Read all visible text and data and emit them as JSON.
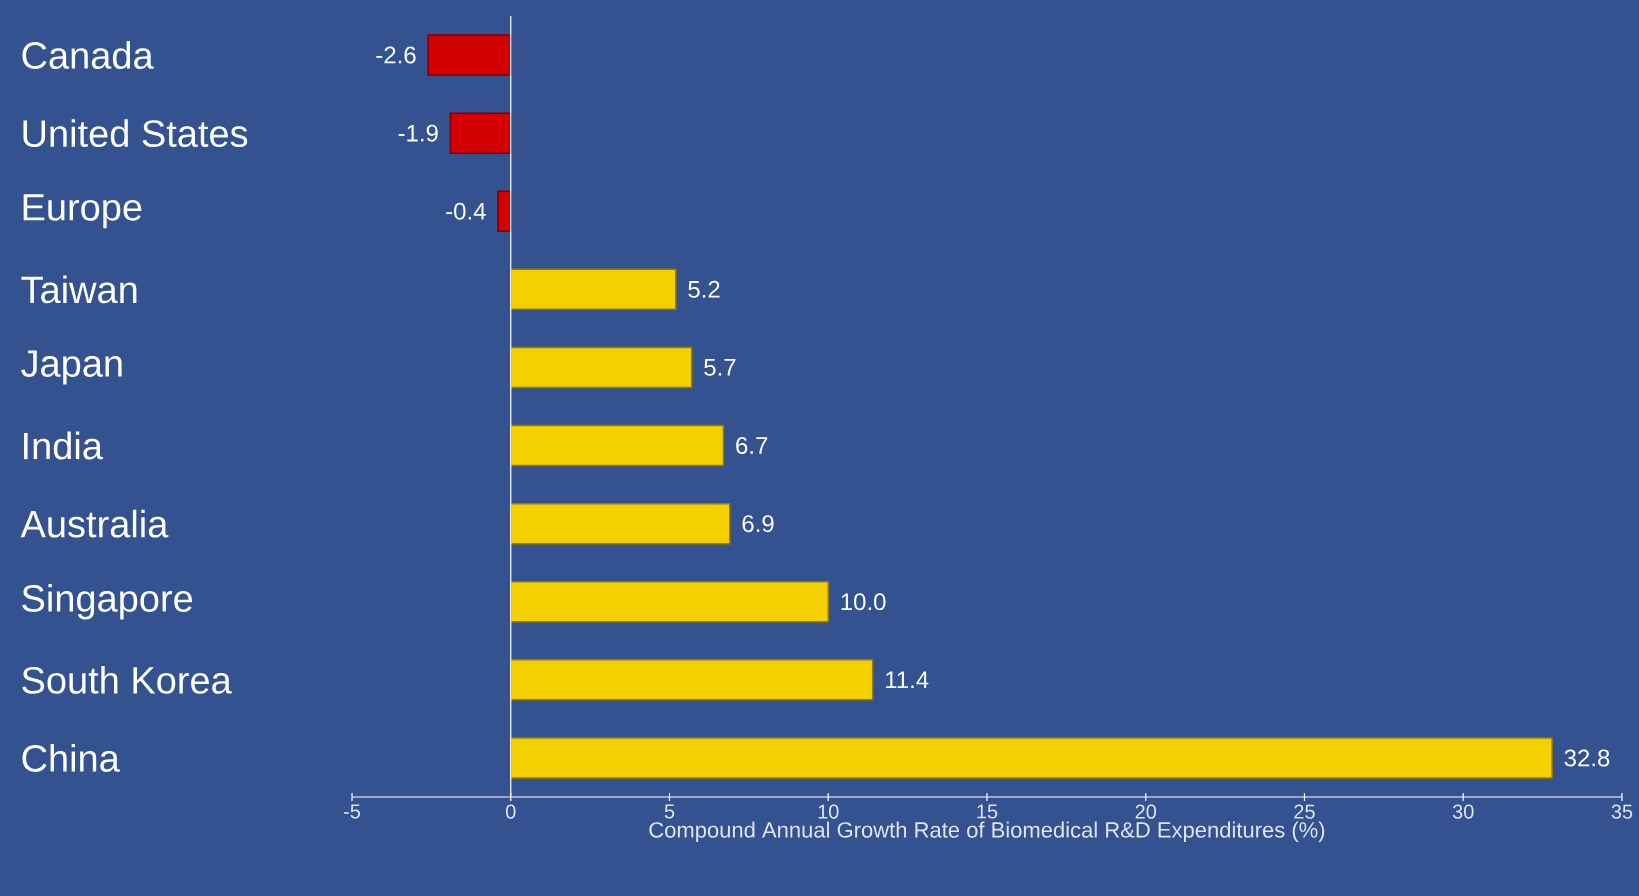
{
  "chart_data": {
    "type": "bar",
    "orientation": "horizontal",
    "xlabel": "Compound Annual  Growth  Rate of Biomedical R&D Expenditures (%)",
    "categories": [
      "Canada",
      "United States",
      "Europe",
      "Taiwan",
      "Japan",
      "India",
      "Australia",
      "Singapore",
      "South Korea",
      "China"
    ],
    "values": [
      -2.6,
      -1.9,
      -0.4,
      5.2,
      5.7,
      6.7,
      6.9,
      10.0,
      11.4,
      32.8
    ],
    "value_labels": [
      "-2.6",
      "-1.9",
      "-0.4",
      "5.2",
      "5.7",
      "6.7",
      "6.9",
      "10.0",
      "11.4",
      "32.8"
    ],
    "colors": [
      "#d40000",
      "#d40000",
      "#d40000",
      "#f5d000",
      "#f5d000",
      "#f5d000",
      "#f5d000",
      "#f5d000",
      "#f5d000",
      "#f5d000"
    ],
    "xlim": [
      -5,
      35
    ],
    "xticks": [
      -5,
      0,
      5,
      10,
      15,
      20,
      25,
      30,
      35
    ]
  }
}
